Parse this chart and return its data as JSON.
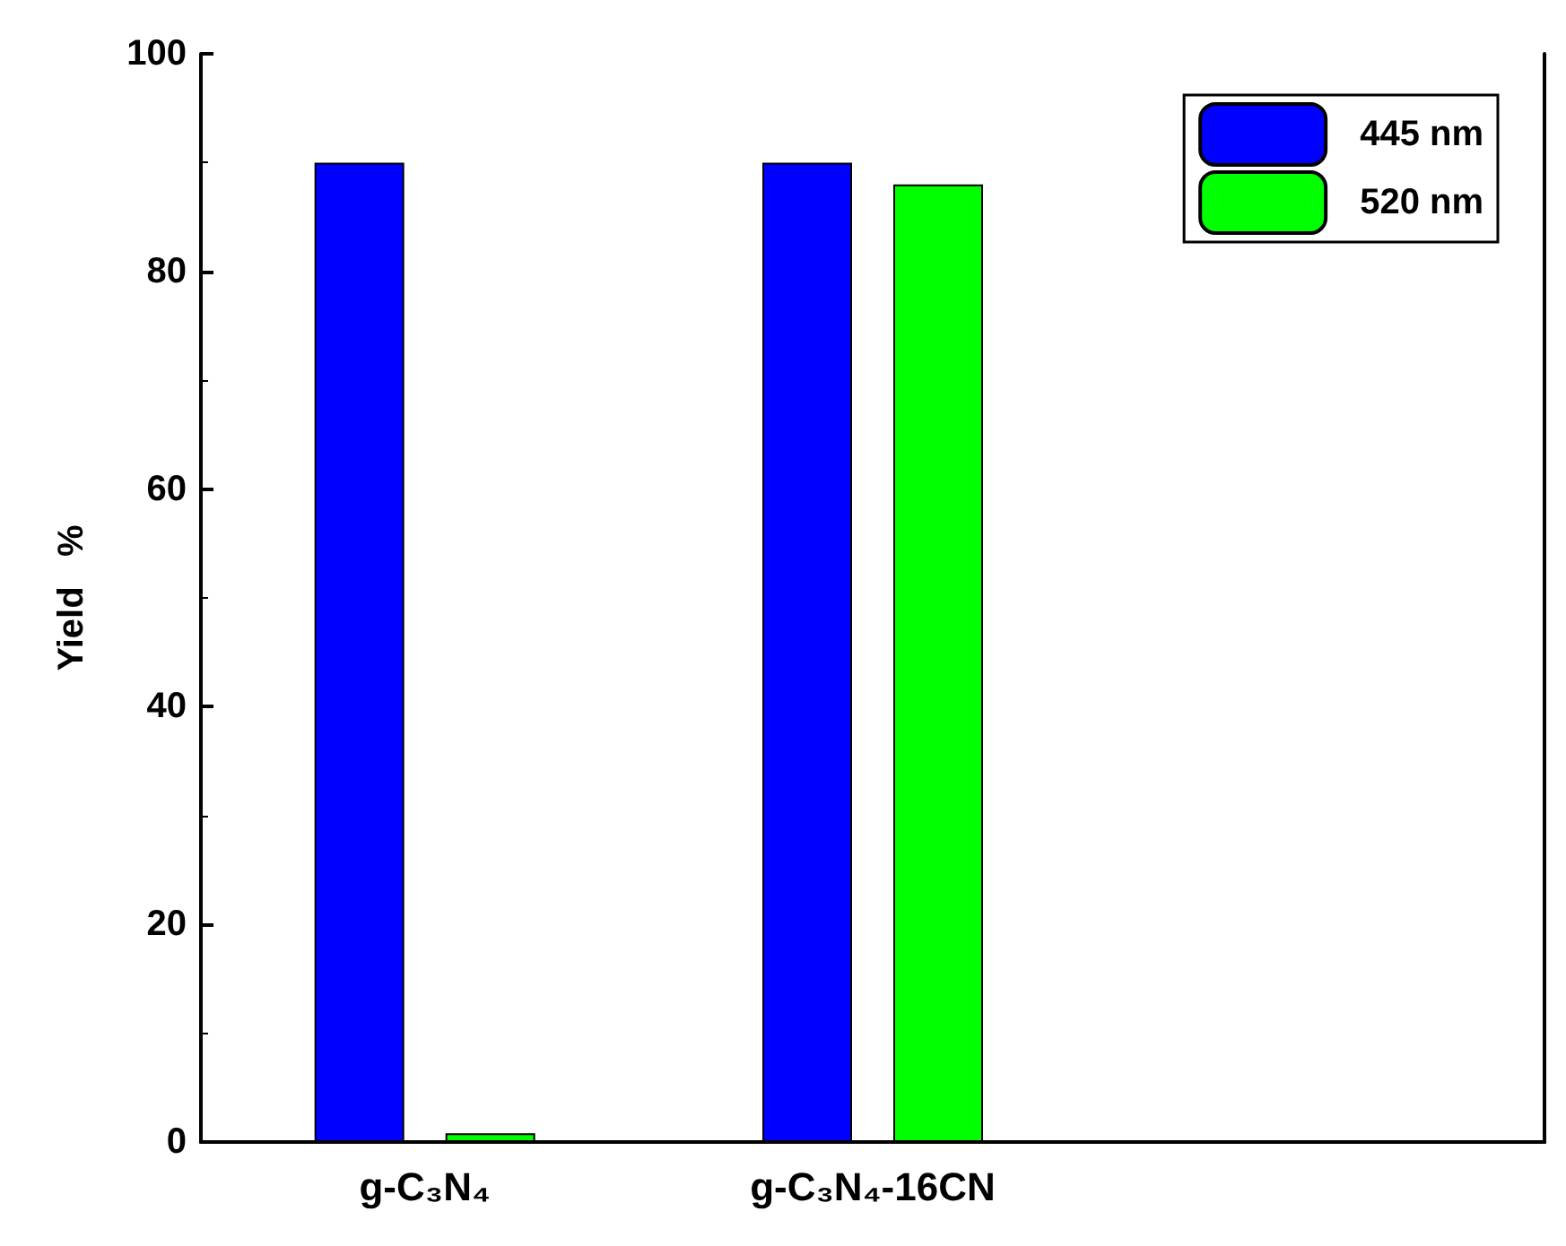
{
  "chart_data": {
    "type": "bar",
    "ylabel": "Yield   %",
    "categories": [
      "g-C₃N₄",
      "g-C₃N₄-16CN",
      null
    ],
    "series": [
      {
        "name": "445 nm",
        "color": "#0000ff",
        "values": [
          90,
          90,
          null
        ]
      },
      {
        "name": "520 nm",
        "color": "#00ff00",
        "values": [
          0.8,
          88,
          null
        ]
      }
    ],
    "ylim": [
      0,
      100
    ],
    "yticks": [
      0,
      20,
      40,
      60,
      80,
      100
    ],
    "grid": false,
    "legend": "top right"
  }
}
